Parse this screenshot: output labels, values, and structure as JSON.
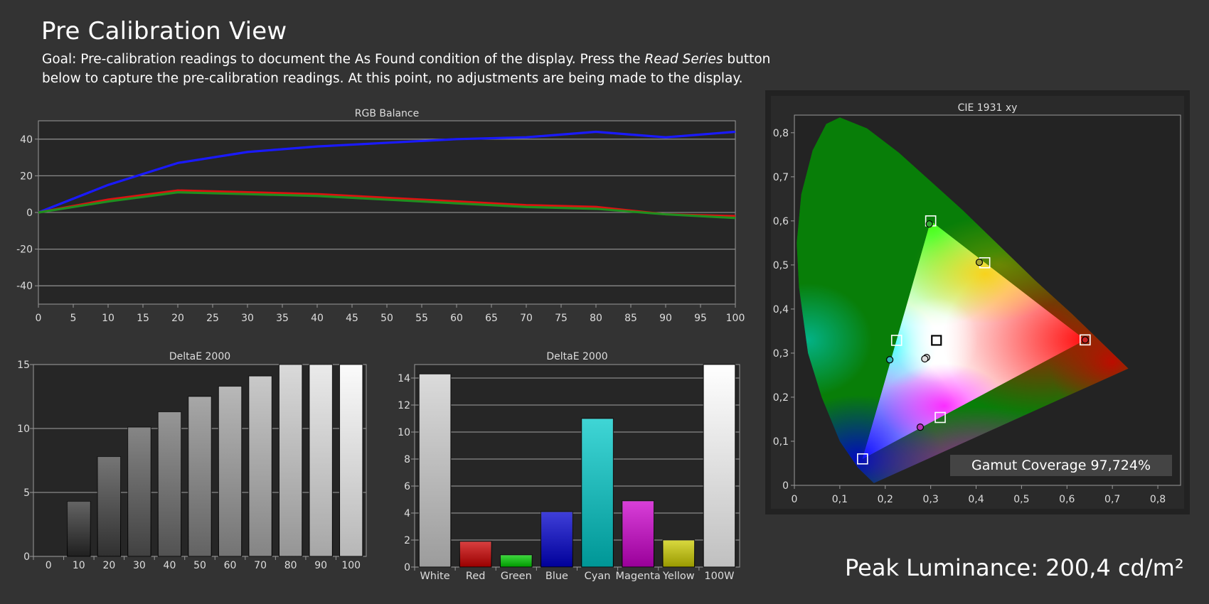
{
  "page": {
    "title": "Pre Calibration View",
    "goal_intro": "Goal: Pre-calibration readings to document the As Found condition of the display. Press the ",
    "goal_emph": "Read Series",
    "goal_rest": " button below to capture the pre-calibration readings. At this point, no adjustments are being made to the display.",
    "peak_luminance": "Peak Luminance: 200,4 cd/m²",
    "gamut_coverage": "Gamut Coverage 97,724%"
  },
  "colors": {
    "background": "#333333",
    "plot_bg": "#262626",
    "red": "#dd1111",
    "green": "#1f8f1f",
    "blue": "#1a1aff"
  },
  "chart_data": [
    {
      "id": "rgb_balance",
      "type": "line",
      "title": "RGB Balance",
      "x": [
        0,
        10,
        20,
        30,
        40,
        50,
        60,
        70,
        80,
        90,
        100
      ],
      "xticks": [
        "0",
        "5",
        "10",
        "15",
        "20",
        "25",
        "30",
        "35",
        "40",
        "45",
        "50",
        "55",
        "60",
        "65",
        "70",
        "75",
        "80",
        "85",
        "90",
        "95",
        "100"
      ],
      "yticks": [
        "40",
        "20",
        "0",
        "-20",
        "-40"
      ],
      "xlim": [
        0,
        100
      ],
      "ylim": [
        -50,
        50
      ],
      "grid": true,
      "series": [
        {
          "color": "#1a1aff",
          "values": [
            0,
            15,
            27,
            33,
            36,
            38,
            40,
            41,
            44,
            41,
            44
          ]
        },
        {
          "color": "#dd1111",
          "values": [
            0,
            7,
            12,
            11,
            10,
            8,
            6,
            4,
            3,
            -1,
            -2
          ]
        },
        {
          "color": "#1f8f1f",
          "values": [
            0,
            6,
            11,
            10,
            9,
            7,
            5,
            3,
            2,
            -1,
            -3
          ]
        }
      ]
    },
    {
      "id": "deltae_grayscale",
      "type": "bar",
      "title": "DeltaE 2000",
      "categories": [
        "0",
        "10",
        "20",
        "30",
        "40",
        "50",
        "60",
        "70",
        "80",
        "90",
        "100"
      ],
      "values": [
        0,
        4.3,
        7.8,
        10.1,
        11.3,
        12.5,
        13.3,
        14.1,
        15,
        15,
        15
      ],
      "yticks": [
        "15",
        "10",
        "5",
        "0"
      ],
      "ylim": [
        0,
        15
      ],
      "grid": true
    },
    {
      "id": "deltae_colors",
      "type": "bar",
      "title": "DeltaE 2000",
      "categories": [
        "White",
        "Red",
        "Green",
        "Blue",
        "Cyan",
        "Magenta",
        "Yellow",
        "100W"
      ],
      "values": [
        14.3,
        1.9,
        0.9,
        4.1,
        11,
        4.9,
        2,
        15
      ],
      "colors": [
        "#cfcfcf",
        "#cc0000",
        "#00cc00",
        "#0000cc",
        "#00c8c8",
        "#cc00cc",
        "#cccc00",
        "#ffffff"
      ],
      "yticks": [
        "14",
        "12",
        "10",
        "8",
        "6",
        "4",
        "2",
        "0"
      ],
      "ylim": [
        0,
        15
      ],
      "grid": true
    },
    {
      "id": "cie_1931",
      "type": "scatter",
      "title": "CIE 1931 xy",
      "xticks": [
        "0",
        "0,1",
        "0,2",
        "0,3",
        "0,4",
        "0,5",
        "0,6",
        "0,7",
        "0,8"
      ],
      "yticks": [
        "0,8",
        "0,7",
        "0,6",
        "0,5",
        "0,4",
        "0,3",
        "0,2",
        "0,1",
        "0"
      ],
      "xlim": [
        0,
        0.85
      ],
      "ylim": [
        0,
        0.84
      ],
      "targets": [
        {
          "name": "red",
          "x": 0.64,
          "y": 0.33
        },
        {
          "name": "green",
          "x": 0.3,
          "y": 0.6
        },
        {
          "name": "blue",
          "x": 0.15,
          "y": 0.06
        },
        {
          "name": "cyan",
          "x": 0.225,
          "y": 0.329
        },
        {
          "name": "magenta",
          "x": 0.321,
          "y": 0.154
        },
        {
          "name": "yellow",
          "x": 0.419,
          "y": 0.505
        },
        {
          "name": "white",
          "x": 0.3127,
          "y": 0.329
        }
      ],
      "measured": [
        {
          "name": "red",
          "x": 0.64,
          "y": 0.33,
          "color": "#cc2222"
        },
        {
          "name": "green",
          "x": 0.297,
          "y": 0.593,
          "color": "#33aa33"
        },
        {
          "name": "cyan",
          "x": 0.21,
          "y": 0.285,
          "color": "#33bbbb"
        },
        {
          "name": "magenta",
          "x": 0.277,
          "y": 0.132,
          "color": "#bb33bb"
        },
        {
          "name": "yellow",
          "x": 0.407,
          "y": 0.506,
          "color": "#aaaa33"
        },
        {
          "name": "white",
          "x": 0.291,
          "y": 0.29,
          "color": "#dddddd"
        },
        {
          "name": "white-2",
          "x": 0.287,
          "y": 0.287,
          "color": "#dddddd"
        }
      ]
    }
  ]
}
